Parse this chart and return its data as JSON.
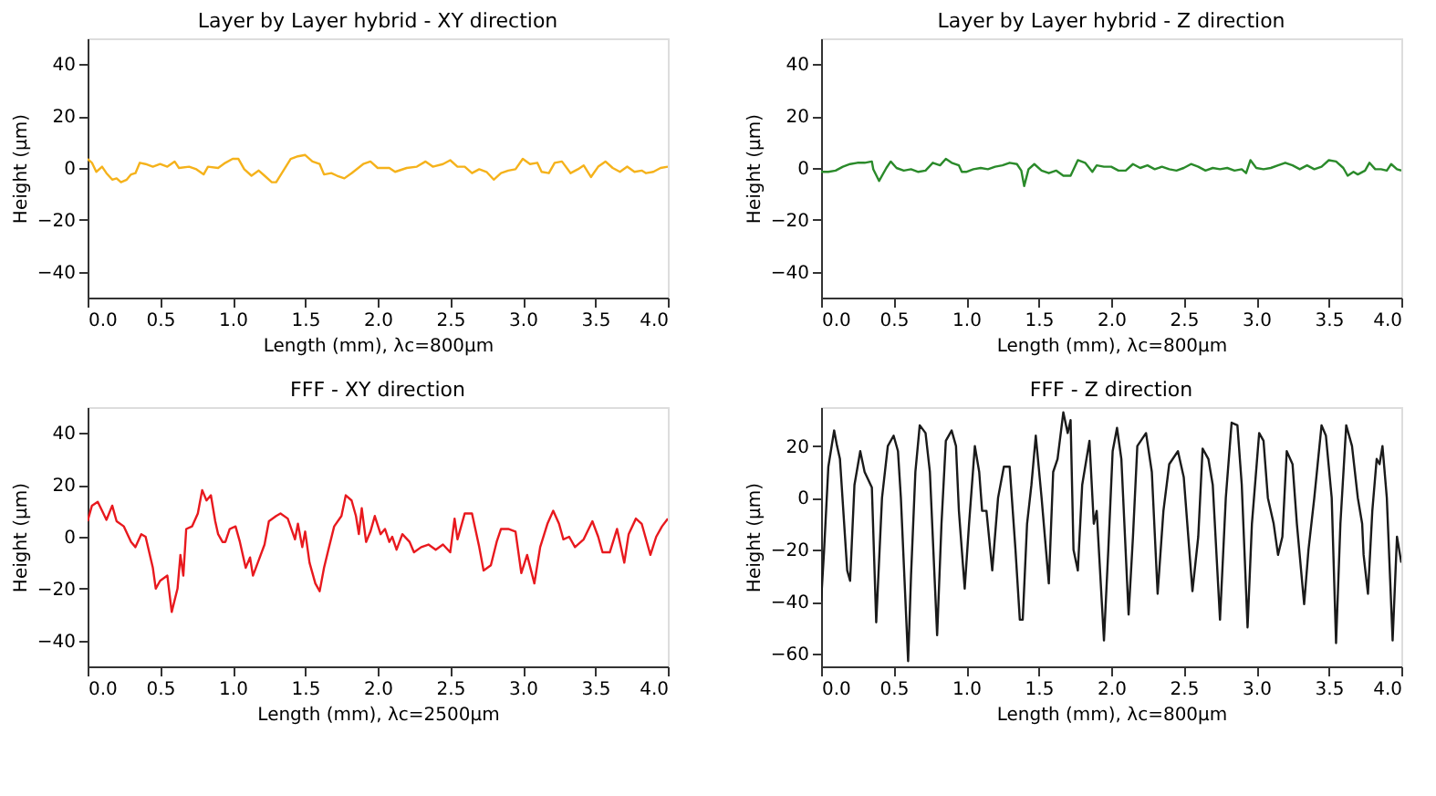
{
  "chart_data": [
    {
      "type": "line",
      "title": "Layer by Layer hybrid - XY direction",
      "xlabel": "Length (mm), λc=800µm",
      "ylabel": "Height (µm)",
      "xlim": [
        0,
        4
      ],
      "ylim": [
        -50,
        50
      ],
      "xticks": [
        {
          "value": 0,
          "label": "0.0"
        },
        0.5,
        {
          "value": 1,
          "label": "1.0"
        },
        1.5,
        {
          "value": 2,
          "label": "2.0"
        },
        2.5,
        {
          "value": 3,
          "label": "3.0"
        },
        3.5,
        {
          "value": 4,
          "label": "4.0"
        }
      ],
      "yticks": [
        -40,
        -20,
        0,
        20,
        40
      ],
      "x": [
        0,
        0.03,
        0.06,
        0.1,
        0.13,
        0.17,
        0.2,
        0.23,
        0.27,
        0.3,
        0.33,
        0.36,
        0.4,
        0.45,
        0.5,
        0.55,
        0.6,
        0.63,
        0.7,
        0.75,
        0.8,
        0.83,
        0.9,
        0.95,
        1.0,
        1.04,
        1.08,
        1.13,
        1.18,
        1.22,
        1.27,
        1.3,
        1.35,
        1.4,
        1.45,
        1.5,
        1.55,
        1.6,
        1.63,
        1.68,
        1.72,
        1.77,
        1.82,
        1.9,
        1.95,
        2.0,
        2.08,
        2.12,
        2.2,
        2.27,
        2.33,
        2.38,
        2.45,
        2.5,
        2.55,
        2.6,
        2.65,
        2.7,
        2.75,
        2.8,
        2.85,
        2.9,
        2.95,
        3.0,
        3.05,
        3.1,
        3.13,
        3.18,
        3.22,
        3.27,
        3.33,
        3.38,
        3.42,
        3.47,
        3.52,
        3.57,
        3.62,
        3.67,
        3.72,
        3.77,
        3.82,
        3.85,
        3.9,
        3.95,
        4.0
      ],
      "series": [
        {
          "color": "#f5b21b",
          "values": [
            3.5,
            2,
            -1.5,
            0.5,
            -2,
            -4.5,
            -4,
            -5.5,
            -4.5,
            -2.5,
            -2,
            2,
            1.5,
            0.5,
            1.5,
            0.5,
            2.5,
            0,
            0.5,
            -0.5,
            -2.5,
            0.5,
            0,
            2,
            3.5,
            3.5,
            -0.5,
            -3,
            -1,
            -3,
            -5.5,
            -5.5,
            -1,
            3.5,
            4.5,
            5,
            2.5,
            1.5,
            -2.5,
            -2,
            -3,
            -4,
            -2,
            1.5,
            2.5,
            0,
            0,
            -1.5,
            0,
            0.5,
            2.5,
            0.5,
            1.5,
            3,
            0.5,
            0.5,
            -2,
            -0.5,
            -1.5,
            -4.5,
            -2,
            -1,
            -0.5,
            3.5,
            1.5,
            2,
            -1.5,
            -2,
            2,
            2.5,
            -2,
            -0.5,
            1,
            -3.5,
            0.5,
            2.5,
            0,
            -1.5,
            0.5,
            -1.5,
            -1,
            -2,
            -1.5,
            0,
            0.5
          ]
        }
      ]
    },
    {
      "type": "line",
      "title": "Layer by Layer hybrid - Z direction",
      "xlabel": "Length (mm), λc=800µm",
      "ylabel": "Height (µm)",
      "xlim": [
        0,
        4
      ],
      "ylim": [
        -50,
        50
      ],
      "xticks": [
        {
          "value": 0,
          "label": "0.0"
        },
        0.5,
        {
          "value": 1,
          "label": "1.0"
        },
        1.5,
        {
          "value": 2,
          "label": "2.0"
        },
        2.5,
        {
          "value": 3,
          "label": "3.0"
        },
        3.5,
        {
          "value": 4,
          "label": "4.0"
        }
      ],
      "yticks": [
        -40,
        -20,
        0,
        20,
        40
      ],
      "x": [
        0,
        0.05,
        0.1,
        0.15,
        0.2,
        0.25,
        0.3,
        0.35,
        0.36,
        0.4,
        0.45,
        0.48,
        0.52,
        0.57,
        0.62,
        0.67,
        0.72,
        0.77,
        0.82,
        0.86,
        0.9,
        0.95,
        0.97,
        1.0,
        1.05,
        1.1,
        1.15,
        1.2,
        1.25,
        1.3,
        1.35,
        1.38,
        1.4,
        1.43,
        1.47,
        1.52,
        1.57,
        1.62,
        1.67,
        1.72,
        1.77,
        1.82,
        1.87,
        1.9,
        1.95,
        2.0,
        2.05,
        2.1,
        2.15,
        2.2,
        2.25,
        2.3,
        2.35,
        2.4,
        2.45,
        2.5,
        2.55,
        2.6,
        2.65,
        2.7,
        2.75,
        2.8,
        2.85,
        2.9,
        2.93,
        2.96,
        3.0,
        3.05,
        3.1,
        3.15,
        3.2,
        3.25,
        3.3,
        3.35,
        3.4,
        3.45,
        3.5,
        3.55,
        3.6,
        3.63,
        3.67,
        3.7,
        3.75,
        3.78,
        3.82,
        3.86,
        3.9,
        3.93,
        3.97,
        4.0
      ],
      "series": [
        {
          "color": "#2a8a2a",
          "values": [
            -1.5,
            -1.5,
            -1,
            0.5,
            1.5,
            2,
            2,
            2.5,
            -0.5,
            -5,
            0,
            2.5,
            0,
            -1,
            -0.5,
            -1.5,
            -1,
            2,
            1,
            3.5,
            2,
            1,
            -1.5,
            -1.5,
            -0.5,
            0,
            -0.5,
            0.5,
            1,
            2,
            1.5,
            -1,
            -7,
            -0.5,
            1.5,
            -1,
            -2,
            -1,
            -3,
            -3,
            3,
            2,
            -1.5,
            1,
            0.5,
            0.5,
            -1,
            -1,
            1.5,
            0,
            1,
            -0.5,
            0.5,
            -0.5,
            -1,
            0,
            1.5,
            0.5,
            -1,
            0,
            -0.5,
            0,
            -1,
            -0.5,
            -2,
            3,
            0,
            -0.5,
            0,
            1,
            2,
            1,
            -0.5,
            1,
            -0.5,
            0.5,
            3,
            2.5,
            0,
            -3,
            -1.5,
            -2.5,
            -1,
            2,
            -0.5,
            -0.5,
            -1,
            1.5,
            -0.5,
            -1
          ]
        }
      ]
    },
    {
      "type": "line",
      "title": "FFF - XY direction",
      "xlabel": "Length (mm), λc=2500µm",
      "ylabel": "Height (µm)",
      "xlim": [
        0,
        4
      ],
      "ylim": [
        -50,
        50
      ],
      "xticks": [
        {
          "value": 0,
          "label": "0.0"
        },
        0.5,
        {
          "value": 1,
          "label": "1.0"
        },
        1.5,
        {
          "value": 2,
          "label": "2.0"
        },
        2.5,
        {
          "value": 3,
          "label": "3.0"
        },
        3.5,
        {
          "value": 4,
          "label": "4.0"
        }
      ],
      "yticks": [
        -40,
        -20,
        0,
        20,
        40
      ],
      "x": [
        0,
        0.03,
        0.07,
        0.1,
        0.13,
        0.17,
        0.2,
        0.25,
        0.3,
        0.33,
        0.37,
        0.4,
        0.45,
        0.47,
        0.5,
        0.55,
        0.58,
        0.62,
        0.64,
        0.66,
        0.68,
        0.72,
        0.76,
        0.79,
        0.82,
        0.85,
        0.88,
        0.9,
        0.93,
        0.95,
        0.98,
        1.02,
        1.05,
        1.09,
        1.12,
        1.14,
        1.18,
        1.22,
        1.25,
        1.3,
        1.33,
        1.38,
        1.43,
        1.45,
        1.48,
        1.5,
        1.53,
        1.57,
        1.6,
        1.63,
        1.66,
        1.7,
        1.75,
        1.78,
        1.82,
        1.85,
        1.87,
        1.89,
        1.92,
        1.95,
        1.98,
        2.02,
        2.05,
        2.08,
        2.1,
        2.13,
        2.17,
        2.22,
        2.25,
        2.3,
        2.35,
        2.4,
        2.45,
        2.5,
        2.53,
        2.55,
        2.6,
        2.65,
        2.7,
        2.73,
        2.78,
        2.82,
        2.85,
        2.9,
        2.95,
        2.99,
        3.03,
        3.08,
        3.12,
        3.17,
        3.21,
        3.25,
        3.28,
        3.32,
        3.36,
        3.42,
        3.48,
        3.52,
        3.55,
        3.6,
        3.65,
        3.7,
        3.73,
        3.78,
        3.82,
        3.86,
        3.88,
        3.92,
        3.96,
        4.0
      ],
      "series": [
        {
          "color": "#e8191e",
          "values": [
            6,
            12,
            13.5,
            10,
            6.5,
            12,
            6,
            4,
            -2,
            -4,
            1,
            0,
            -12,
            -20,
            -17,
            -15,
            -29,
            -20,
            -7,
            -15,
            3,
            4,
            9,
            18,
            14,
            16,
            6,
            1,
            -2,
            -2,
            3,
            4,
            -2,
            -12,
            -8,
            -15,
            -9,
            -3,
            6,
            8,
            9,
            7,
            -1,
            5,
            -4,
            2,
            -10,
            -18,
            -21,
            -12,
            -5,
            4,
            8,
            16,
            14,
            8,
            1,
            11,
            -2,
            2,
            8,
            1,
            3,
            -2,
            0,
            -5,
            1,
            -2,
            -6,
            -4,
            -3,
            -5,
            -3,
            -6,
            7,
            -1,
            9,
            9,
            -4,
            -13,
            -11,
            -2,
            3,
            3,
            2,
            -14,
            -7,
            -18,
            -4,
            5,
            10,
            5,
            -1,
            0,
            -4,
            -1,
            6,
            0,
            -6,
            -6,
            3,
            -10,
            1,
            7,
            5,
            -3,
            -7,
            0,
            4,
            7
          ]
        }
      ]
    },
    {
      "type": "line",
      "title": "FFF - Z direction",
      "xlabel": "Length (mm), λc=800µm",
      "ylabel": "Height (µm)",
      "xlim": [
        0,
        4
      ],
      "ylim": [
        -65,
        35
      ],
      "xticks": [
        {
          "value": 0,
          "label": "0.0"
        },
        0.5,
        {
          "value": 1,
          "label": "1.0"
        },
        1.5,
        {
          "value": 2,
          "label": "2.0"
        },
        2.5,
        {
          "value": 3,
          "label": "3.0"
        },
        3.5,
        {
          "value": 4,
          "label": "4.0"
        }
      ],
      "yticks": [
        -60,
        -40,
        -20,
        0,
        20
      ],
      "x": [
        0,
        0.02,
        0.05,
        0.09,
        0.11,
        0.13,
        0.18,
        0.2,
        0.23,
        0.27,
        0.3,
        0.35,
        0.38,
        0.42,
        0.46,
        0.5,
        0.53,
        0.55,
        0.6,
        0.62,
        0.65,
        0.68,
        0.72,
        0.75,
        0.8,
        0.83,
        0.86,
        0.9,
        0.93,
        0.95,
        0.99,
        1.02,
        1.06,
        1.09,
        1.11,
        1.14,
        1.18,
        1.22,
        1.26,
        1.3,
        1.34,
        1.37,
        1.39,
        1.42,
        1.45,
        1.48,
        1.52,
        1.57,
        1.6,
        1.63,
        1.67,
        1.7,
        1.72,
        1.74,
        1.77,
        1.8,
        1.85,
        1.88,
        1.9,
        1.95,
        1.98,
        2.01,
        2.04,
        2.07,
        2.12,
        2.15,
        2.18,
        2.24,
        2.28,
        2.32,
        2.36,
        2.4,
        2.46,
        2.5,
        2.56,
        2.6,
        2.63,
        2.67,
        2.7,
        2.75,
        2.79,
        2.83,
        2.87,
        2.9,
        2.94,
        2.97,
        3.02,
        3.05,
        3.08,
        3.12,
        3.15,
        3.18,
        3.21,
        3.25,
        3.28,
        3.33,
        3.36,
        3.4,
        3.45,
        3.48,
        3.52,
        3.55,
        3.58,
        3.62,
        3.66,
        3.7,
        3.73,
        3.74,
        3.77,
        3.8,
        3.83,
        3.85,
        3.87,
        3.9,
        3.94,
        3.97,
        4.0
      ],
      "series": [
        {
          "color": "#1a1a1a",
          "values": [
            -40,
            -21,
            12,
            26,
            20,
            15,
            -28,
            -32,
            5,
            18,
            10,
            4,
            -48,
            0,
            20,
            24,
            18,
            0,
            -63,
            -30,
            10,
            28,
            25,
            10,
            -53,
            -10,
            22,
            26,
            20,
            -5,
            -35,
            -10,
            20,
            10,
            -5,
            -5,
            -28,
            0,
            12,
            12,
            -20,
            -47,
            -47,
            -10,
            5,
            24,
            0,
            -33,
            10,
            15,
            33,
            25,
            30,
            -20,
            -28,
            5,
            22,
            -10,
            -5,
            -55,
            -20,
            18,
            27,
            15,
            -45,
            -15,
            20,
            25,
            10,
            -37,
            -5,
            13,
            18,
            8,
            -36,
            -15,
            19,
            15,
            5,
            -47,
            0,
            29,
            28,
            5,
            -50,
            -10,
            25,
            22,
            0,
            -10,
            -22,
            -15,
            18,
            13,
            -10,
            -41,
            -20,
            0,
            28,
            24,
            0,
            -56,
            -10,
            28,
            20,
            0,
            -10,
            -22,
            -37,
            -5,
            15,
            13,
            20,
            0,
            -55,
            -15,
            -25
          ]
        }
      ]
    }
  ]
}
